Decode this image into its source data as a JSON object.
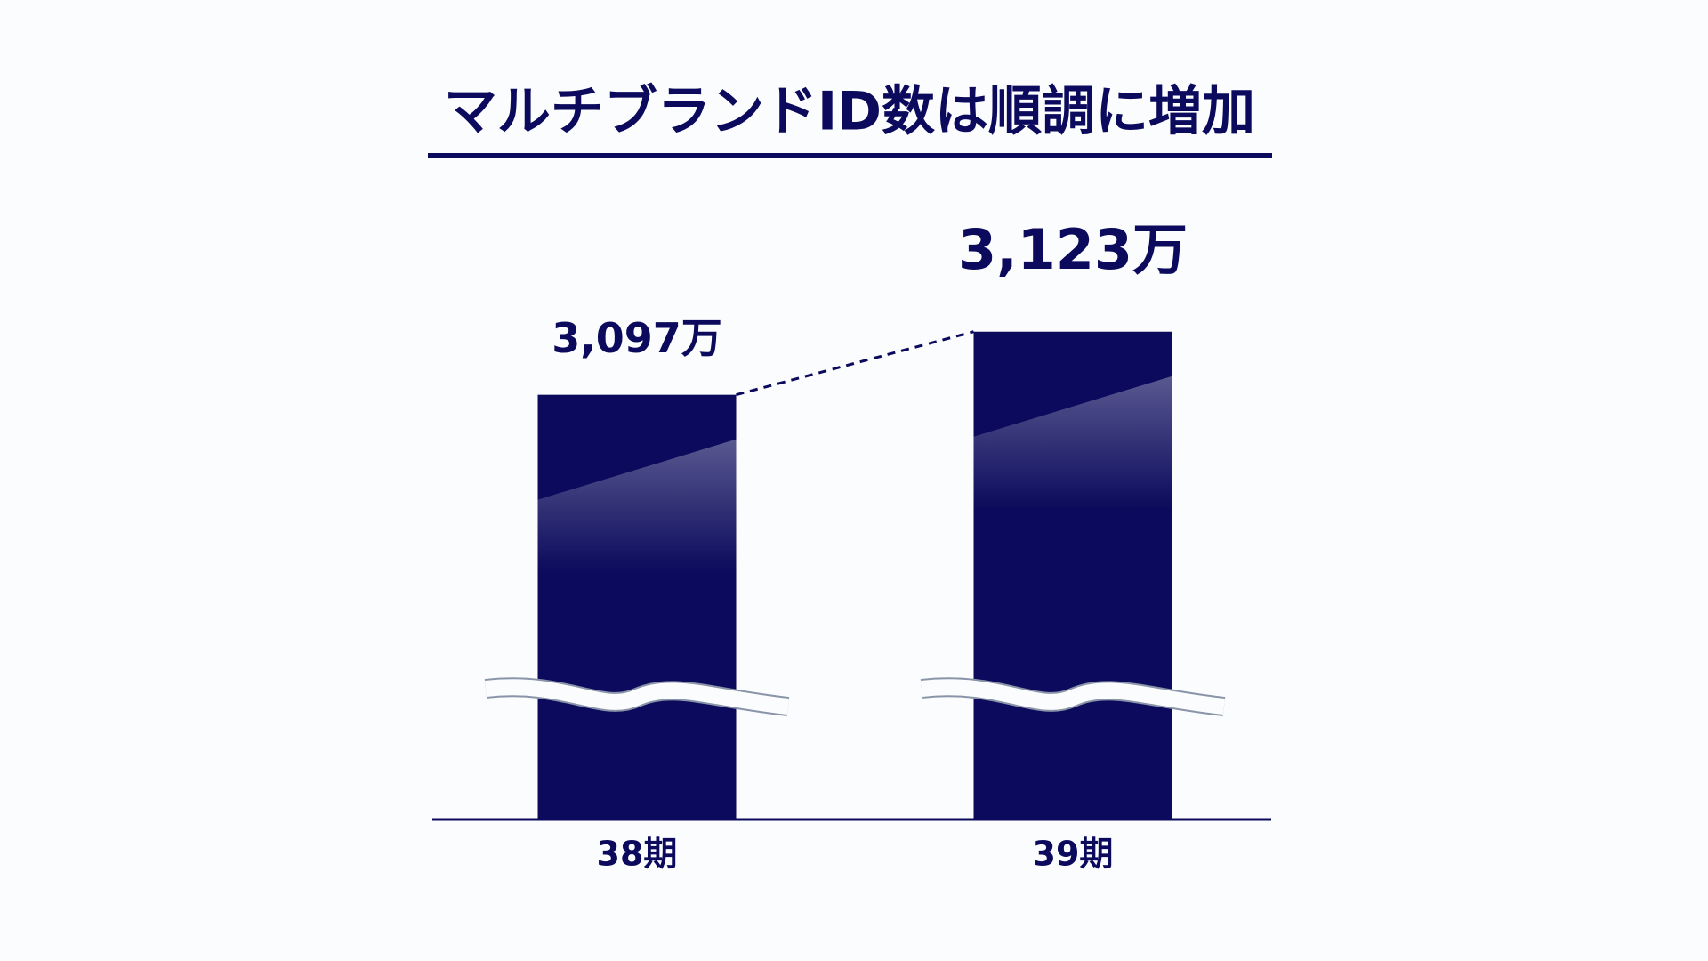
{
  "chart_data": {
    "type": "bar",
    "title": "マルチブランドID数は順調に増加",
    "categories": [
      "38期",
      "39期"
    ],
    "values": [
      3097,
      3123
    ],
    "value_labels": [
      "3,097万",
      "3,123万"
    ],
    "color": "#0b0a5c",
    "ylim": [
      2922,
      3168
    ]
  }
}
